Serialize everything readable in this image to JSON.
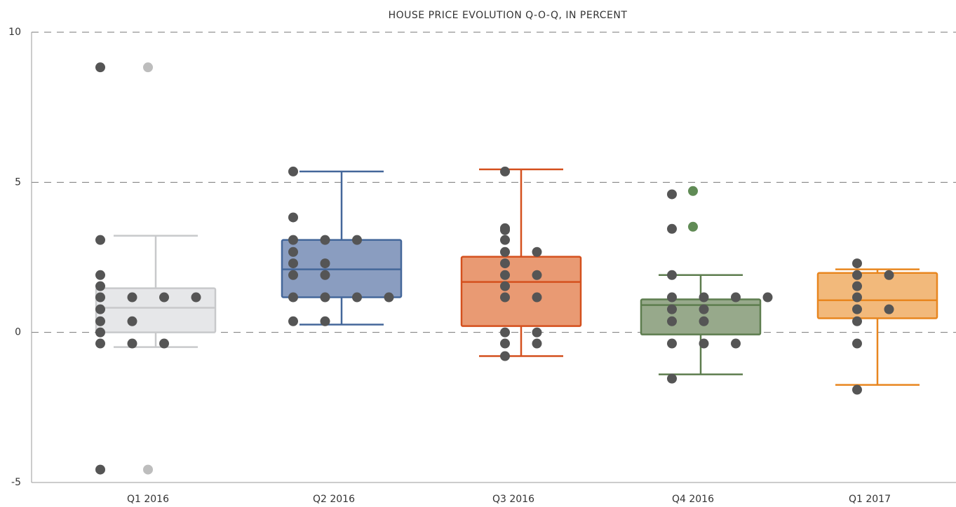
{
  "chart_data": {
    "type": "box",
    "title": "HOUSE PRICE EVOLUTION Q-O-Q, IN PERCENT",
    "categories": [
      "Q1 2016",
      "Q2 2016",
      "Q3 2016",
      "Q4 2016",
      "Q1 2017"
    ],
    "ylim": [
      -5,
      10
    ],
    "yticks": [
      -5,
      0,
      5,
      10
    ],
    "grid": true,
    "point_color": "#555555",
    "boxes": [
      {
        "whisker_low": -0.49,
        "q1": 0,
        "median": 0.82,
        "q3": 1.47,
        "whisker_high": 3.22,
        "color": "#c8c9cb",
        "fill": "#e6e7e9",
        "outlier_color": "#bdbdbd",
        "outliers": [
          8.83,
          -4.57
        ],
        "points": [
          8.83,
          3.08,
          1.91,
          1.54,
          1.17,
          1.17,
          1.17,
          1.17,
          0.77,
          0.37,
          0.37,
          0,
          -0.37,
          -0.37,
          -0.37,
          -4.57
        ]
      },
      {
        "whisker_low": 0.26,
        "q1": 1.17,
        "median": 2.1,
        "q3": 3.08,
        "whisker_high": 5.36,
        "color": "#44679a",
        "fill": "#8a9dc0",
        "outlier_color": "#44679a",
        "outliers": [],
        "points": [
          5.36,
          3.83,
          3.08,
          3.08,
          3.08,
          2.68,
          2.3,
          2.3,
          1.91,
          1.91,
          1.17,
          1.17,
          1.17,
          1.17,
          0.37,
          0.37
        ]
      },
      {
        "whisker_low": -0.79,
        "q1": 0.21,
        "median": 1.68,
        "q3": 2.52,
        "whisker_high": 5.43,
        "color": "#d4501e",
        "fill": "#e99a73",
        "outlier_color": "#d4501e",
        "outliers": [],
        "points": [
          5.36,
          3.47,
          3.41,
          3.08,
          2.68,
          2.68,
          2.3,
          1.91,
          1.91,
          1.54,
          1.17,
          1.17,
          0,
          0,
          -0.37,
          -0.37,
          -0.79
        ]
      },
      {
        "whisker_low": -1.4,
        "q1": -0.07,
        "median": 0.91,
        "q3": 1.1,
        "whisker_high": 1.91,
        "color": "#5d7d4e",
        "fill": "#97a98b",
        "outlier_color": "#608b55",
        "outliers": [
          4.71,
          3.52
        ],
        "points": [
          4.6,
          3.45,
          1.91,
          1.17,
          1.17,
          1.17,
          1.17,
          0.77,
          0.77,
          0.37,
          0.37,
          -0.37,
          -0.37,
          -0.37,
          -1.54
        ]
      },
      {
        "whisker_low": -1.75,
        "q1": 0.47,
        "median": 1.07,
        "q3": 1.98,
        "whisker_high": 2.1,
        "color": "#e8861f",
        "fill": "#f2b97b",
        "outlier_color": "#e8861f",
        "outliers": [],
        "points": [
          2.3,
          1.91,
          1.91,
          1.54,
          1.17,
          0.77,
          0.77,
          0.37,
          -0.37,
          -1.91
        ]
      }
    ]
  }
}
